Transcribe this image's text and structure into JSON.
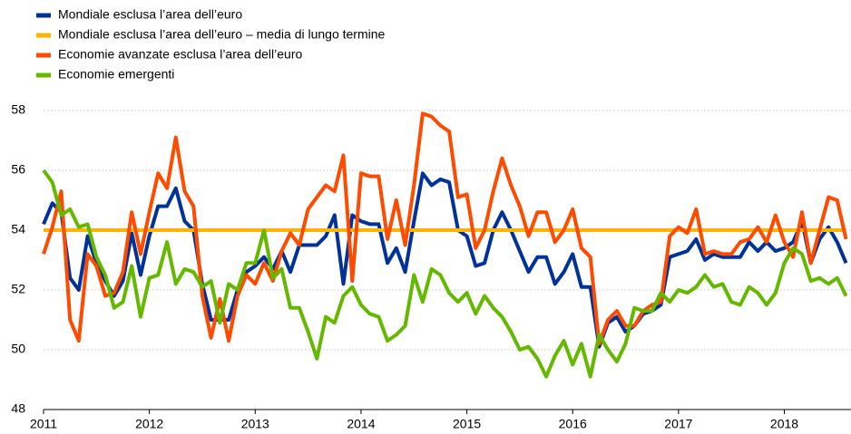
{
  "chart_data": {
    "type": "line",
    "x": [
      2011,
      2011.083,
      2011.167,
      2011.25,
      2011.333,
      2011.417,
      2011.5,
      2011.583,
      2011.667,
      2011.75,
      2011.833,
      2011.917,
      2012,
      2012.083,
      2012.167,
      2012.25,
      2012.333,
      2012.417,
      2012.5,
      2012.583,
      2012.667,
      2012.75,
      2012.833,
      2012.917,
      2013,
      2013.083,
      2013.167,
      2013.25,
      2013.333,
      2013.417,
      2013.5,
      2013.583,
      2013.667,
      2013.75,
      2013.833,
      2013.917,
      2014,
      2014.083,
      2014.167,
      2014.25,
      2014.333,
      2014.417,
      2014.5,
      2014.583,
      2014.667,
      2014.75,
      2014.833,
      2014.917,
      2015,
      2015.083,
      2015.167,
      2015.25,
      2015.333,
      2015.417,
      2015.5,
      2015.583,
      2015.667,
      2015.75,
      2015.833,
      2015.917,
      2016,
      2016.083,
      2016.167,
      2016.25,
      2016.333,
      2016.417,
      2016.5,
      2016.583,
      2016.667,
      2016.75,
      2016.833,
      2016.917,
      2017,
      2017.083,
      2017.167,
      2017.25,
      2017.333,
      2017.417,
      2017.5,
      2017.583,
      2017.667,
      2017.75,
      2017.833,
      2017.917,
      2018,
      2018.083,
      2018.167,
      2018.25,
      2018.333,
      2018.417,
      2018.5,
      2018.583
    ],
    "series": [
      {
        "name": "Mondiale esclusa l’area dell’euro",
        "color": "#003299",
        "values": [
          54.2,
          54.9,
          54.6,
          52.4,
          52.0,
          53.8,
          52.9,
          52.3,
          51.8,
          52.3,
          53.9,
          52.5,
          53.8,
          54.8,
          54.8,
          55.4,
          54.3,
          54.0,
          52.2,
          51.0,
          51.0,
          51.0,
          52.0,
          52.6,
          52.8,
          53.1,
          52.7,
          53.3,
          52.6,
          53.5,
          53.5,
          53.5,
          53.8,
          54.5,
          52.2,
          54.5,
          54.3,
          54.2,
          54.2,
          52.9,
          53.4,
          52.6,
          54.3,
          55.9,
          55.5,
          55.7,
          55.6,
          54.0,
          53.8,
          52.8,
          52.9,
          54.0,
          54.6,
          54.0,
          53.3,
          52.6,
          53.1,
          53.1,
          52.2,
          52.6,
          53.2,
          52.1,
          52.1,
          50.1,
          50.9,
          51.1,
          50.6,
          50.8,
          51.2,
          51.3,
          51.5,
          53.1,
          53.2,
          53.3,
          53.7,
          53.0,
          53.2,
          53.1,
          53.1,
          53.1,
          53.6,
          53.3,
          53.6,
          53.3,
          53.4,
          53.6,
          54.3,
          52.9,
          53.7,
          54.1,
          53.6,
          52.9
        ]
      },
      {
        "name": "Mondiale esclusa l’area dell’euro – media di lungo termine",
        "color": "#ffb400",
        "values": [
          54,
          54,
          54,
          54,
          54,
          54,
          54,
          54,
          54,
          54,
          54,
          54,
          54,
          54,
          54,
          54,
          54,
          54,
          54,
          54,
          54,
          54,
          54,
          54,
          54,
          54,
          54,
          54,
          54,
          54,
          54,
          54,
          54,
          54,
          54,
          54,
          54,
          54,
          54,
          54,
          54,
          54,
          54,
          54,
          54,
          54,
          54,
          54,
          54,
          54,
          54,
          54,
          54,
          54,
          54,
          54,
          54,
          54,
          54,
          54,
          54,
          54,
          54,
          54,
          54,
          54,
          54,
          54,
          54,
          54,
          54,
          54,
          54,
          54,
          54,
          54,
          54,
          54,
          54,
          54,
          54,
          54,
          54,
          54,
          54,
          54,
          54,
          54,
          54,
          54,
          54,
          54
        ]
      },
      {
        "name": "Economie avanzate esclusa l’area dell’euro",
        "color": "#ff4b00",
        "values": [
          53.2,
          54.1,
          55.3,
          51.0,
          50.3,
          53.2,
          52.8,
          51.8,
          51.9,
          52.6,
          54.6,
          53.2,
          54.6,
          55.9,
          55.4,
          57.1,
          55.3,
          54.8,
          51.8,
          50.4,
          51.7,
          50.3,
          51.8,
          52.5,
          52.2,
          52.9,
          52.3,
          53.3,
          53.9,
          53.5,
          54.7,
          55.1,
          55.5,
          55.3,
          56.5,
          52.3,
          55.9,
          55.8,
          55.8,
          53.7,
          55.0,
          53.5,
          55.5,
          57.9,
          57.8,
          57.5,
          57.3,
          55.1,
          55.2,
          53.4,
          54.0,
          55.3,
          56.4,
          55.5,
          54.8,
          53.8,
          54.6,
          54.6,
          53.6,
          54.0,
          54.7,
          53.4,
          53.1,
          50.2,
          51.0,
          51.3,
          50.8,
          50.8,
          51.3,
          51.5,
          51.6,
          53.8,
          54.1,
          53.9,
          54.7,
          53.2,
          53.3,
          53.2,
          53.2,
          53.6,
          53.7,
          54.1,
          53.6,
          54.5,
          53.6,
          53.1,
          54.6,
          52.9,
          54.0,
          55.1,
          55.0,
          53.7
        ]
      },
      {
        "name": "Economie emergenti",
        "color": "#65b800",
        "values": [
          56.0,
          55.6,
          54.5,
          54.7,
          54.1,
          54.2,
          53.1,
          52.5,
          51.4,
          51.6,
          52.8,
          51.1,
          52.4,
          52.5,
          53.6,
          52.2,
          52.7,
          52.6,
          52.1,
          52.3,
          50.9,
          52.2,
          52.0,
          52.9,
          52.9,
          54.0,
          52.4,
          52.7,
          51.4,
          51.4,
          50.6,
          49.7,
          51.1,
          50.9,
          51.8,
          52.1,
          51.5,
          51.2,
          51.1,
          50.3,
          50.5,
          50.8,
          52.5,
          51.6,
          52.7,
          52.5,
          51.9,
          51.6,
          51.9,
          51.2,
          51.8,
          51.4,
          51.1,
          50.6,
          50.0,
          50.1,
          49.7,
          49.1,
          49.8,
          50.3,
          49.5,
          50.2,
          49.1,
          50.5,
          50.0,
          49.6,
          50.2,
          51.4,
          51.3,
          51.3,
          51.9,
          51.6,
          52.0,
          51.9,
          52.1,
          52.5,
          52.1,
          52.2,
          51.6,
          51.5,
          52.1,
          51.9,
          51.5,
          51.9,
          52.9,
          53.4,
          53.2,
          52.3,
          52.4,
          52.2,
          52.4,
          51.8
        ]
      }
    ],
    "xlim": [
      2011,
      2018.63
    ],
    "xticks": [
      2011,
      2012,
      2013,
      2014,
      2015,
      2016,
      2017,
      2018
    ],
    "ylim": [
      48,
      58
    ],
    "yticks": [
      48,
      50,
      52,
      54,
      56,
      58
    ],
    "grid": true,
    "legend": "top-left"
  }
}
